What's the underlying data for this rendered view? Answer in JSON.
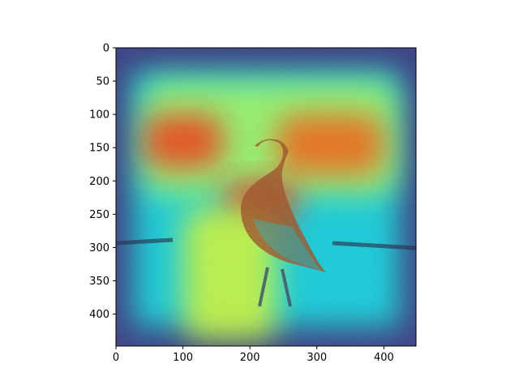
{
  "chart_data": {
    "type": "heatmap",
    "title": "",
    "xlabel": "",
    "ylabel": "",
    "xlim": [
      0,
      448
    ],
    "ylim": [
      448,
      0
    ],
    "xticks": [
      0,
      100,
      200,
      300,
      400
    ],
    "yticks": [
      0,
      50,
      100,
      150,
      200,
      250,
      300,
      350,
      400
    ],
    "colormap": "jet",
    "overlay": "attention heatmap over photo of a roadrunner bird on dark ground",
    "grid": false,
    "legend": "none",
    "hotspots": [
      {
        "x": 40,
        "y": 50,
        "w": 380,
        "h": 170,
        "intensity": 0.55
      },
      {
        "x": 40,
        "y": 100,
        "w": 120,
        "h": 80,
        "intensity": 0.85
      },
      {
        "x": 240,
        "y": 100,
        "w": 160,
        "h": 90,
        "intensity": 0.8
      },
      {
        "x": 160,
        "y": 200,
        "w": 110,
        "h": 60,
        "intensity": 0.85
      },
      {
        "x": 100,
        "y": 240,
        "w": 140,
        "h": 200,
        "intensity": 0.6
      }
    ]
  }
}
